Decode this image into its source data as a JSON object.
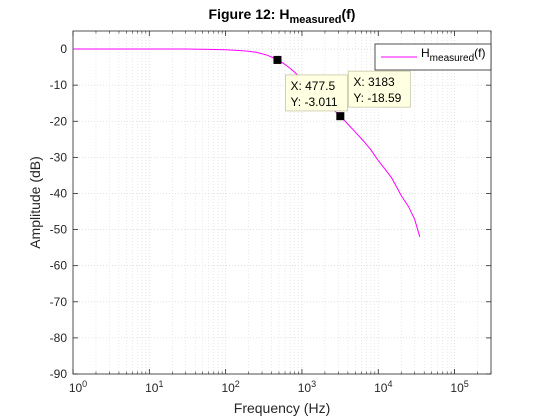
{
  "chart_data": {
    "type": "line",
    "title": {
      "prefix": "Figure 12: H",
      "subscript": "measured",
      "suffix": "(f)"
    },
    "xlabel": "Frequency (Hz)",
    "ylabel": "Amplitude (dB)",
    "xscale": "log",
    "xlim": [
      1,
      300000
    ],
    "ylim": [
      -90,
      5
    ],
    "x_ticks": [
      {
        "base": "10",
        "exp": "0",
        "value": 1
      },
      {
        "base": "10",
        "exp": "1",
        "value": 10
      },
      {
        "base": "10",
        "exp": "2",
        "value": 100
      },
      {
        "base": "10",
        "exp": "3",
        "value": 1000
      },
      {
        "base": "10",
        "exp": "4",
        "value": 10000
      },
      {
        "base": "10",
        "exp": "5",
        "value": 100000
      }
    ],
    "y_ticks": [
      {
        "label": "0",
        "value": 0
      },
      {
        "label": "-10",
        "value": -10
      },
      {
        "label": "-20",
        "value": -20
      },
      {
        "label": "-30",
        "value": -30
      },
      {
        "label": "-40",
        "value": -40
      },
      {
        "label": "-50",
        "value": -50
      },
      {
        "label": "-60",
        "value": -60
      },
      {
        "label": "-70",
        "value": -70
      },
      {
        "label": "-80",
        "value": -80
      },
      {
        "label": "-90",
        "value": -90
      }
    ],
    "grid": true,
    "legend_position": "top-right",
    "series": [
      {
        "name": {
          "main": "H",
          "subscript": "measured",
          "suffix": "(f)"
        },
        "color": "#ff00ff",
        "x": [
          1,
          3,
          10,
          30,
          60,
          100,
          150,
          200,
          250,
          300,
          350,
          400,
          477.5,
          550,
          650,
          800,
          1000,
          1300,
          1600,
          2000,
          2500,
          3183,
          4000,
          5000,
          6500,
          8000,
          10000,
          12000,
          15000,
          18000,
          20000,
          25000,
          30000,
          35000
        ],
        "y": [
          0,
          0,
          0,
          0,
          -0.1,
          -0.2,
          -0.4,
          -0.6,
          -0.9,
          -1.3,
          -1.7,
          -2.2,
          -3.011,
          -3.7,
          -4.8,
          -6.4,
          -8.3,
          -10.7,
          -12.7,
          -14.5,
          -16.5,
          -18.59,
          -20.8,
          -23.0,
          -25.6,
          -27.9,
          -30.9,
          -33.0,
          -35.7,
          -38.8,
          -40.6,
          -43.7,
          -47.2,
          -52.0
        ]
      }
    ],
    "datatips": [
      {
        "x_label": "X: 477.5",
        "y_label": "Y: -3.011",
        "x": 477.5,
        "y": -3.011
      },
      {
        "x_label": "X: 3183",
        "y_label": "Y: -18.59",
        "x": 3183,
        "y": -18.59
      }
    ],
    "colors": {
      "axis": "#262626",
      "grid": "#d9d9d9",
      "datatip_bg": "#ffffe1",
      "datatip_border": "#c8c8a8",
      "marker": "#000000"
    }
  }
}
